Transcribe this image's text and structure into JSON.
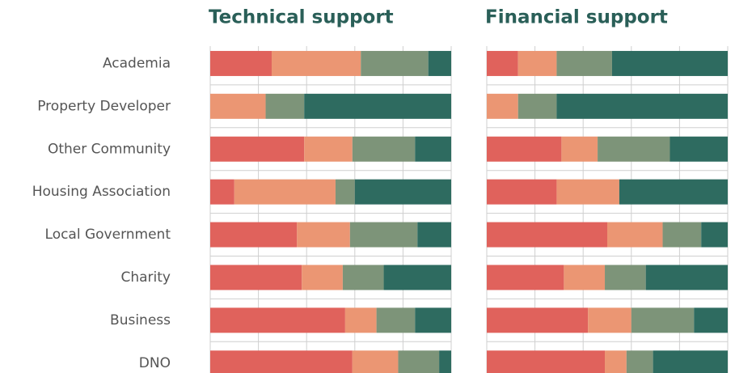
{
  "chart_data": {
    "type": "stacked_bar",
    "orientation": "horizontal",
    "categories": [
      "Academia",
      "Property Developer",
      "Other Community",
      "Housing Association",
      "Local Government",
      "Charity",
      "Business",
      "DNO"
    ],
    "xlim": [
      0,
      100
    ],
    "xticks": [
      0,
      20,
      40,
      60,
      80,
      100
    ],
    "grid": true,
    "panels": [
      {
        "title": "Technical support",
        "series": [
          {
            "color": "#e0625c",
            "values": [
              25.5,
              0,
              39,
              10,
              36,
              38,
              56,
              59
            ]
          },
          {
            "color": "#eb9673",
            "values": [
              37,
              23,
              20,
              42,
              22,
              17,
              13,
              19
            ]
          },
          {
            "color": "#7d9479",
            "values": [
              28,
              16,
              26,
              8,
              28,
              17,
              16,
              17
            ]
          },
          {
            "color": "#2e6b60",
            "values": [
              9.5,
              61,
              15,
              40,
              14,
              28,
              15,
              5
            ]
          }
        ]
      },
      {
        "title": "Financial support",
        "series": [
          {
            "color": "#e0625c",
            "values": [
              13,
              0,
              31,
              29,
              50,
              32,
              42,
              49
            ]
          },
          {
            "color": "#eb9673",
            "values": [
              16,
              13,
              15,
              26,
              23,
              17,
              18,
              9
            ]
          },
          {
            "color": "#7d9479",
            "values": [
              23,
              16,
              30,
              0,
              16,
              17,
              26,
              11
            ]
          },
          {
            "color": "#2e6b60",
            "values": [
              48,
              71,
              24,
              45,
              11,
              34,
              14,
              31
            ]
          }
        ]
      }
    ]
  }
}
